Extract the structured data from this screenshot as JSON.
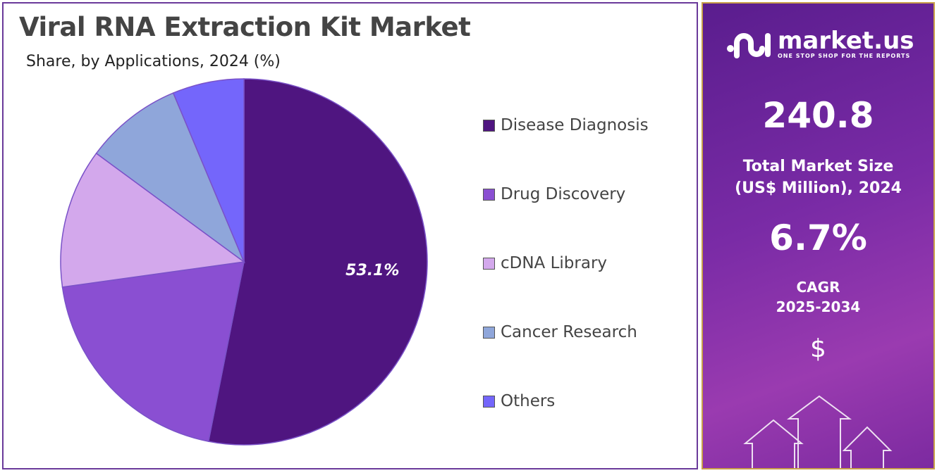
{
  "chart_data": {
    "type": "pie",
    "title": "Viral RNA Extraction Kit Market",
    "subtitle": "Share, by Applications, 2024 (%)",
    "categories": [
      "Disease Diagnosis",
      "Drug Discovery",
      "cDNA Library",
      "Cancer Research",
      "Others"
    ],
    "values": [
      53.1,
      19.7,
      12.3,
      8.6,
      6.3
    ],
    "colors": [
      "#4f1580",
      "#8a4fd2",
      "#d3a8ec",
      "#8fa6da",
      "#7466fb"
    ],
    "data_labels": {
      "0": "53.1%"
    },
    "legend_position": "right"
  },
  "panel": {
    "logo_text": "market.us",
    "logo_tagline": "ONE STOP SHOP FOR THE REPORTS",
    "market_size": "240.8",
    "market_size_label_1": "Total Market Size",
    "market_size_label_2": "(US$ Million), 2024",
    "cagr": "6.7%",
    "cagr_label_1": "CAGR",
    "cagr_label_2": "2025-2034",
    "currency_symbol": "$"
  }
}
